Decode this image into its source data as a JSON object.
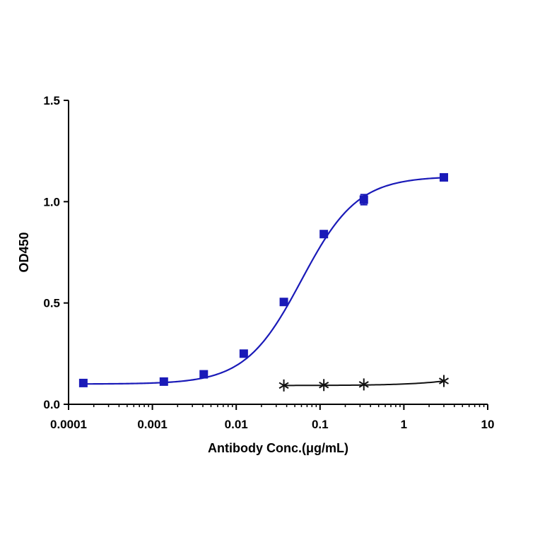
{
  "chart_data": {
    "type": "scatter",
    "title": "",
    "xlabel": "Antibody Conc.(μg/mL)",
    "ylabel": "OD450",
    "xscale": "log",
    "xlim": [
      0.0001,
      10
    ],
    "ylim": [
      0,
      1.5
    ],
    "x_ticks": [
      0.0001,
      0.001,
      0.01,
      0.1,
      1,
      10
    ],
    "x_tick_labels": [
      "0.0001",
      "0.001",
      "0.01",
      "0.1",
      "1",
      "10"
    ],
    "y_ticks": [
      0,
      0.5,
      1.0,
      1.5
    ],
    "y_tick_labels": [
      "0.0",
      "0.5",
      "1.0",
      "1.5"
    ],
    "grid": false,
    "legend": "none",
    "series": [
      {
        "marker": "square",
        "color": "#1a1ab8",
        "fit": "4PL sigmoid",
        "x": [
          0.00015,
          0.00137,
          0.0041,
          0.0123,
          0.037,
          0.111,
          0.333,
          3.0
        ],
        "y": [
          0.105,
          0.112,
          0.148,
          0.25,
          0.505,
          0.84,
          1.01,
          1.12
        ],
        "yerr": [
          0,
          0,
          0,
          0,
          0,
          0,
          0.025,
          0
        ]
      },
      {
        "marker": "star",
        "color": "#111111",
        "fit": "line",
        "x": [
          0.037,
          0.111,
          0.333,
          3.0
        ],
        "y": [
          0.093,
          0.095,
          0.098,
          0.115
        ]
      }
    ]
  }
}
